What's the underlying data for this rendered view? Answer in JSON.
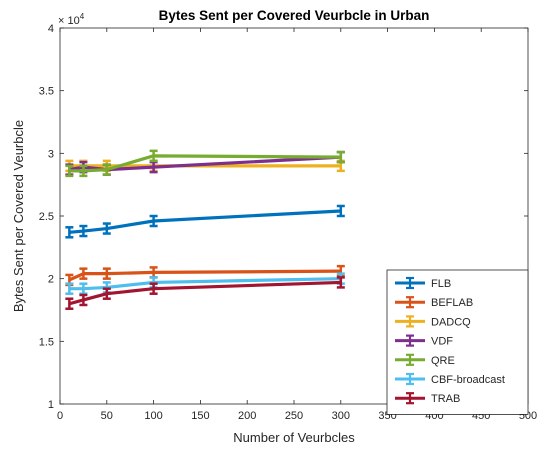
{
  "chart_data": {
    "type": "line",
    "title": "Bytes Sent per Covered Veurbcle in Urban",
    "xlabel": "Number of Veurbcles",
    "ylabel": "Bytes Sent per Covered Veurbcle",
    "exponent_label": "× 10^4",
    "exponent_base": "× 10",
    "exponent_power": "4",
    "xlim": [
      0,
      500
    ],
    "ylim": [
      1,
      4
    ],
    "xticks": [
      0,
      50,
      100,
      150,
      200,
      250,
      300,
      350,
      400,
      450,
      500
    ],
    "yticks": [
      1,
      1.5,
      2,
      2.5,
      3,
      3.5,
      4
    ],
    "xtick_labels": [
      "0",
      "50",
      "100",
      "150",
      "200",
      "250",
      "300",
      "350",
      "400",
      "450",
      "500"
    ],
    "ytick_labels": [
      "1",
      "1.5",
      "2",
      "2.5",
      "3",
      "3.5",
      "4"
    ],
    "x": [
      10,
      25,
      50,
      100,
      300
    ],
    "legend_position": "bottom-right",
    "grid": false,
    "series": [
      {
        "name": "FLB",
        "color": "#0072BD",
        "values": [
          2.37,
          2.38,
          2.4,
          2.46,
          2.54
        ]
      },
      {
        "name": "BEFLAB",
        "color": "#D95319",
        "values": [
          1.99,
          2.04,
          2.04,
          2.05,
          2.06
        ]
      },
      {
        "name": "DADCQ",
        "color": "#EDB120",
        "values": [
          2.9,
          2.9,
          2.9,
          2.9,
          2.9
        ]
      },
      {
        "name": "VDF",
        "color": "#7E2F8E",
        "values": [
          2.87,
          2.89,
          2.87,
          2.89,
          2.97
        ]
      },
      {
        "name": "QRE",
        "color": "#77AC30",
        "values": [
          2.86,
          2.86,
          2.87,
          2.98,
          2.97
        ]
      },
      {
        "name": "CBF-broadcast",
        "color": "#4DBEEE",
        "values": [
          1.92,
          1.92,
          1.93,
          1.97,
          2.0
        ]
      },
      {
        "name": "TRAB",
        "color": "#A2142F",
        "values": [
          1.8,
          1.83,
          1.88,
          1.92,
          1.97
        ]
      }
    ]
  }
}
